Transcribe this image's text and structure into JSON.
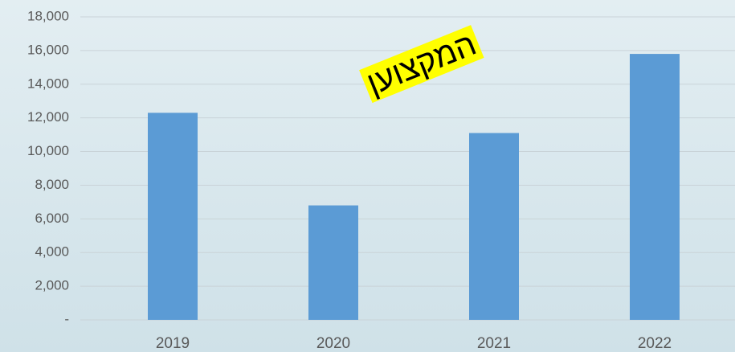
{
  "chart_data": {
    "type": "bar",
    "annotation": "המקצוען",
    "categories": [
      "2019",
      "2020",
      "2021",
      "2022"
    ],
    "values": [
      12300,
      6800,
      11100,
      15800
    ],
    "color": "#5b9bd5",
    "ylim": [
      0,
      18000
    ],
    "yticks": [
      {
        "value": 0,
        "label": "-"
      },
      {
        "value": 2000,
        "label": "2,000"
      },
      {
        "value": 4000,
        "label": "4,000"
      },
      {
        "value": 6000,
        "label": "6,000"
      },
      {
        "value": 8000,
        "label": "8,000"
      },
      {
        "value": 10000,
        "label": "10,000"
      },
      {
        "value": 12000,
        "label": "12,000"
      },
      {
        "value": 14000,
        "label": "14,000"
      },
      {
        "value": 16000,
        "label": "16,000"
      },
      {
        "value": 18000,
        "label": "18,000"
      }
    ],
    "grid": true
  }
}
